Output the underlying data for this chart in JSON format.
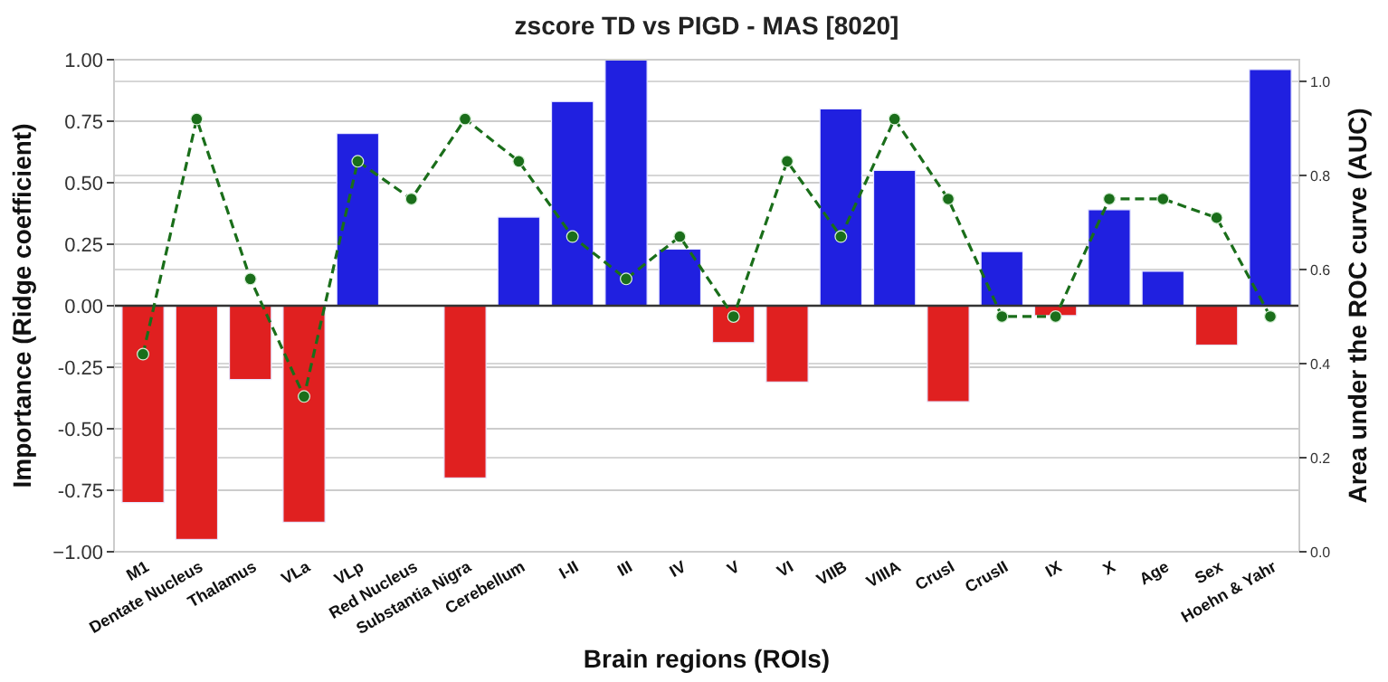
{
  "chart_data": {
    "type": "bar",
    "title": "zscore TD vs PIGD - MAS [8020]",
    "xlabel": "Brain regions (ROIs)",
    "ylabel": "Importance (Ridge coefficient)",
    "y2label": "Area under the ROC curve (AUC)",
    "categories": [
      "M1",
      "Dentate Nucleus",
      "Thalamus",
      "VLa",
      "VLp",
      "Red Nucleus",
      "Substantia Nigra",
      "Cerebellum",
      "I-II",
      "III",
      "IV",
      "V",
      "VI",
      "VIIB",
      "VIIIA",
      "CrusI",
      "CrusII",
      "IX",
      "X",
      "Age",
      "Sex",
      "Hoehn & Yahr"
    ],
    "series": [
      {
        "colors": [
          "#e02020",
          "#e02020",
          "#e02020",
          "#e02020",
          "#2020e0",
          "#2020e0",
          "#e02020",
          "#2020e0",
          "#2020e0",
          "#2020e0",
          "#2020e0",
          "#e02020",
          "#e02020",
          "#2020e0",
          "#2020e0",
          "#e02020",
          "#2020e0",
          "#e02020",
          "#2020e0",
          "#2020e0",
          "#e02020",
          "#2020e0"
        ],
        "values": [
          -0.8,
          -0.95,
          -0.3,
          -0.88,
          0.7,
          0,
          -0.7,
          0.36,
          0.83,
          1.0,
          0.23,
          -0.15,
          -0.31,
          0.8,
          0.55,
          -0.39,
          0.22,
          -0.04,
          0.39,
          0.14,
          -0.16,
          0.96
        ]
      },
      {
        "type": "line",
        "axis": "y2",
        "color": "#1a6e1a",
        "marker": "circle",
        "line_style": "dashed",
        "values": [
          0.42,
          0.92,
          0.58,
          0.33,
          0.83,
          0.75,
          0.92,
          0.83,
          0.67,
          0.58,
          0.67,
          0.5,
          0.83,
          0.67,
          0.92,
          0.75,
          0.5,
          0.5,
          0.75,
          0.75,
          0.71,
          0.5
        ]
      }
    ],
    "ylim": [
      -1,
      1
    ],
    "yticks": [
      {
        "value": -1,
        "label": "−1.00"
      },
      {
        "value": -0.75,
        "label": "-0.75"
      },
      {
        "value": -0.5,
        "label": "-0.50"
      },
      {
        "value": -0.25,
        "label": "-0.25"
      },
      {
        "value": 0,
        "label": "0.00"
      },
      {
        "value": 0.25,
        "label": "0.25"
      },
      {
        "value": 0.5,
        "label": "0.50"
      },
      {
        "value": 0.75,
        "label": "0.75"
      },
      {
        "value": 1,
        "label": "1.00"
      }
    ],
    "y2lim": [
      0,
      1.046
    ],
    "y2ticks": [
      {
        "value": 0,
        "label": "0.0"
      },
      {
        "value": 0.2,
        "label": "0.2"
      },
      {
        "value": 0.4,
        "label": "0.4"
      },
      {
        "value": 0.6,
        "label": "0.6"
      },
      {
        "value": 0.8,
        "label": "0.8"
      },
      {
        "value": 1,
        "label": "1.0"
      }
    ],
    "ref_lines": [
      {
        "axis": "y",
        "value": 0,
        "color": "#333333"
      }
    ],
    "grid": true
  }
}
